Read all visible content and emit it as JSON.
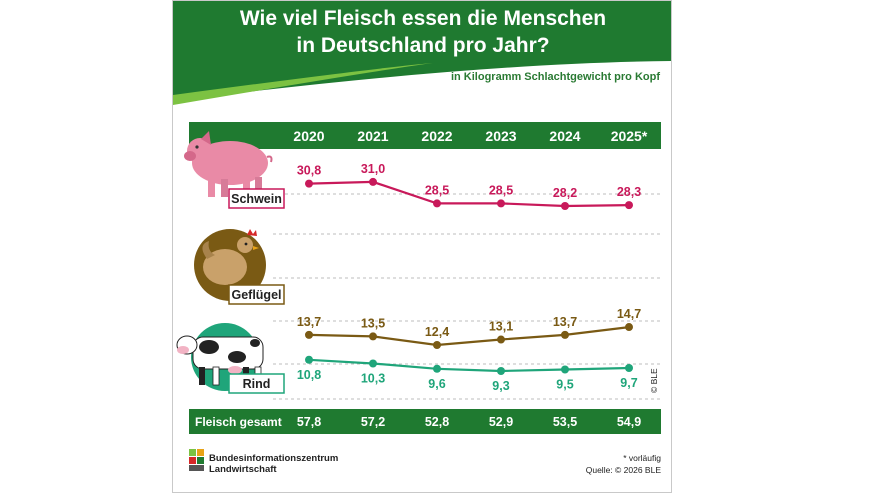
{
  "chart_data": {
    "type": "line",
    "title_lines": [
      "Wie viel Fleisch essen die Menschen",
      "in Deutschland pro Jahr?"
    ],
    "subtitle": "in Kilogramm Schlachtgewicht pro Kopf",
    "categories": [
      "2020",
      "2021",
      "2022",
      "2023",
      "2024",
      "2025*"
    ],
    "series": [
      {
        "name": "Schwein",
        "values": [
          30.8,
          31.0,
          28.5,
          28.5,
          28.2,
          28.3
        ],
        "labels": [
          "30,8",
          "31,0",
          "28,5",
          "28,5",
          "28,2",
          "28,3"
        ],
        "color": "#c8195a"
      },
      {
        "name": "Geflügel",
        "values": [
          13.7,
          13.5,
          12.4,
          13.1,
          13.7,
          14.7
        ],
        "labels": [
          "13,7",
          "13,5",
          "12,4",
          "13,1",
          "13,7",
          "14,7"
        ],
        "color": "#7a5a14"
      },
      {
        "name": "Rind",
        "values": [
          10.8,
          10.3,
          9.6,
          9.3,
          9.5,
          9.7
        ],
        "labels": [
          "10,8",
          "10,3",
          "9,6",
          "9,3",
          "9,5",
          "9,7"
        ],
        "color": "#1fa57a"
      }
    ],
    "total": {
      "label": "Fleisch gesamt",
      "values": [
        57.8,
        57.2,
        52.8,
        52.9,
        53.5,
        54.9
      ],
      "labels": [
        "57,8",
        "57,2",
        "52,8",
        "52,9",
        "53,5",
        "54,9"
      ]
    },
    "footnote": "* vorläufig",
    "source": "Quelle: © 2026 BLE",
    "copyright": "© BLE",
    "grid": "dashed",
    "legend": "left, as animal labels"
  },
  "brand": {
    "line1": "Bundesinformationszentrum",
    "line2": "Landwirtschaft"
  },
  "colors": {
    "header_green": "#1f7a30",
    "band_green": "#1f7a30",
    "accent_light_green": "#7cc242",
    "pig_pink": "#e98aa6",
    "poultry_brown": "#7a5a14",
    "beef_green": "#1fa57a"
  },
  "icons": [
    "pig-icon",
    "chicken-icon",
    "cow-icon",
    "ble-logo-icon"
  ]
}
